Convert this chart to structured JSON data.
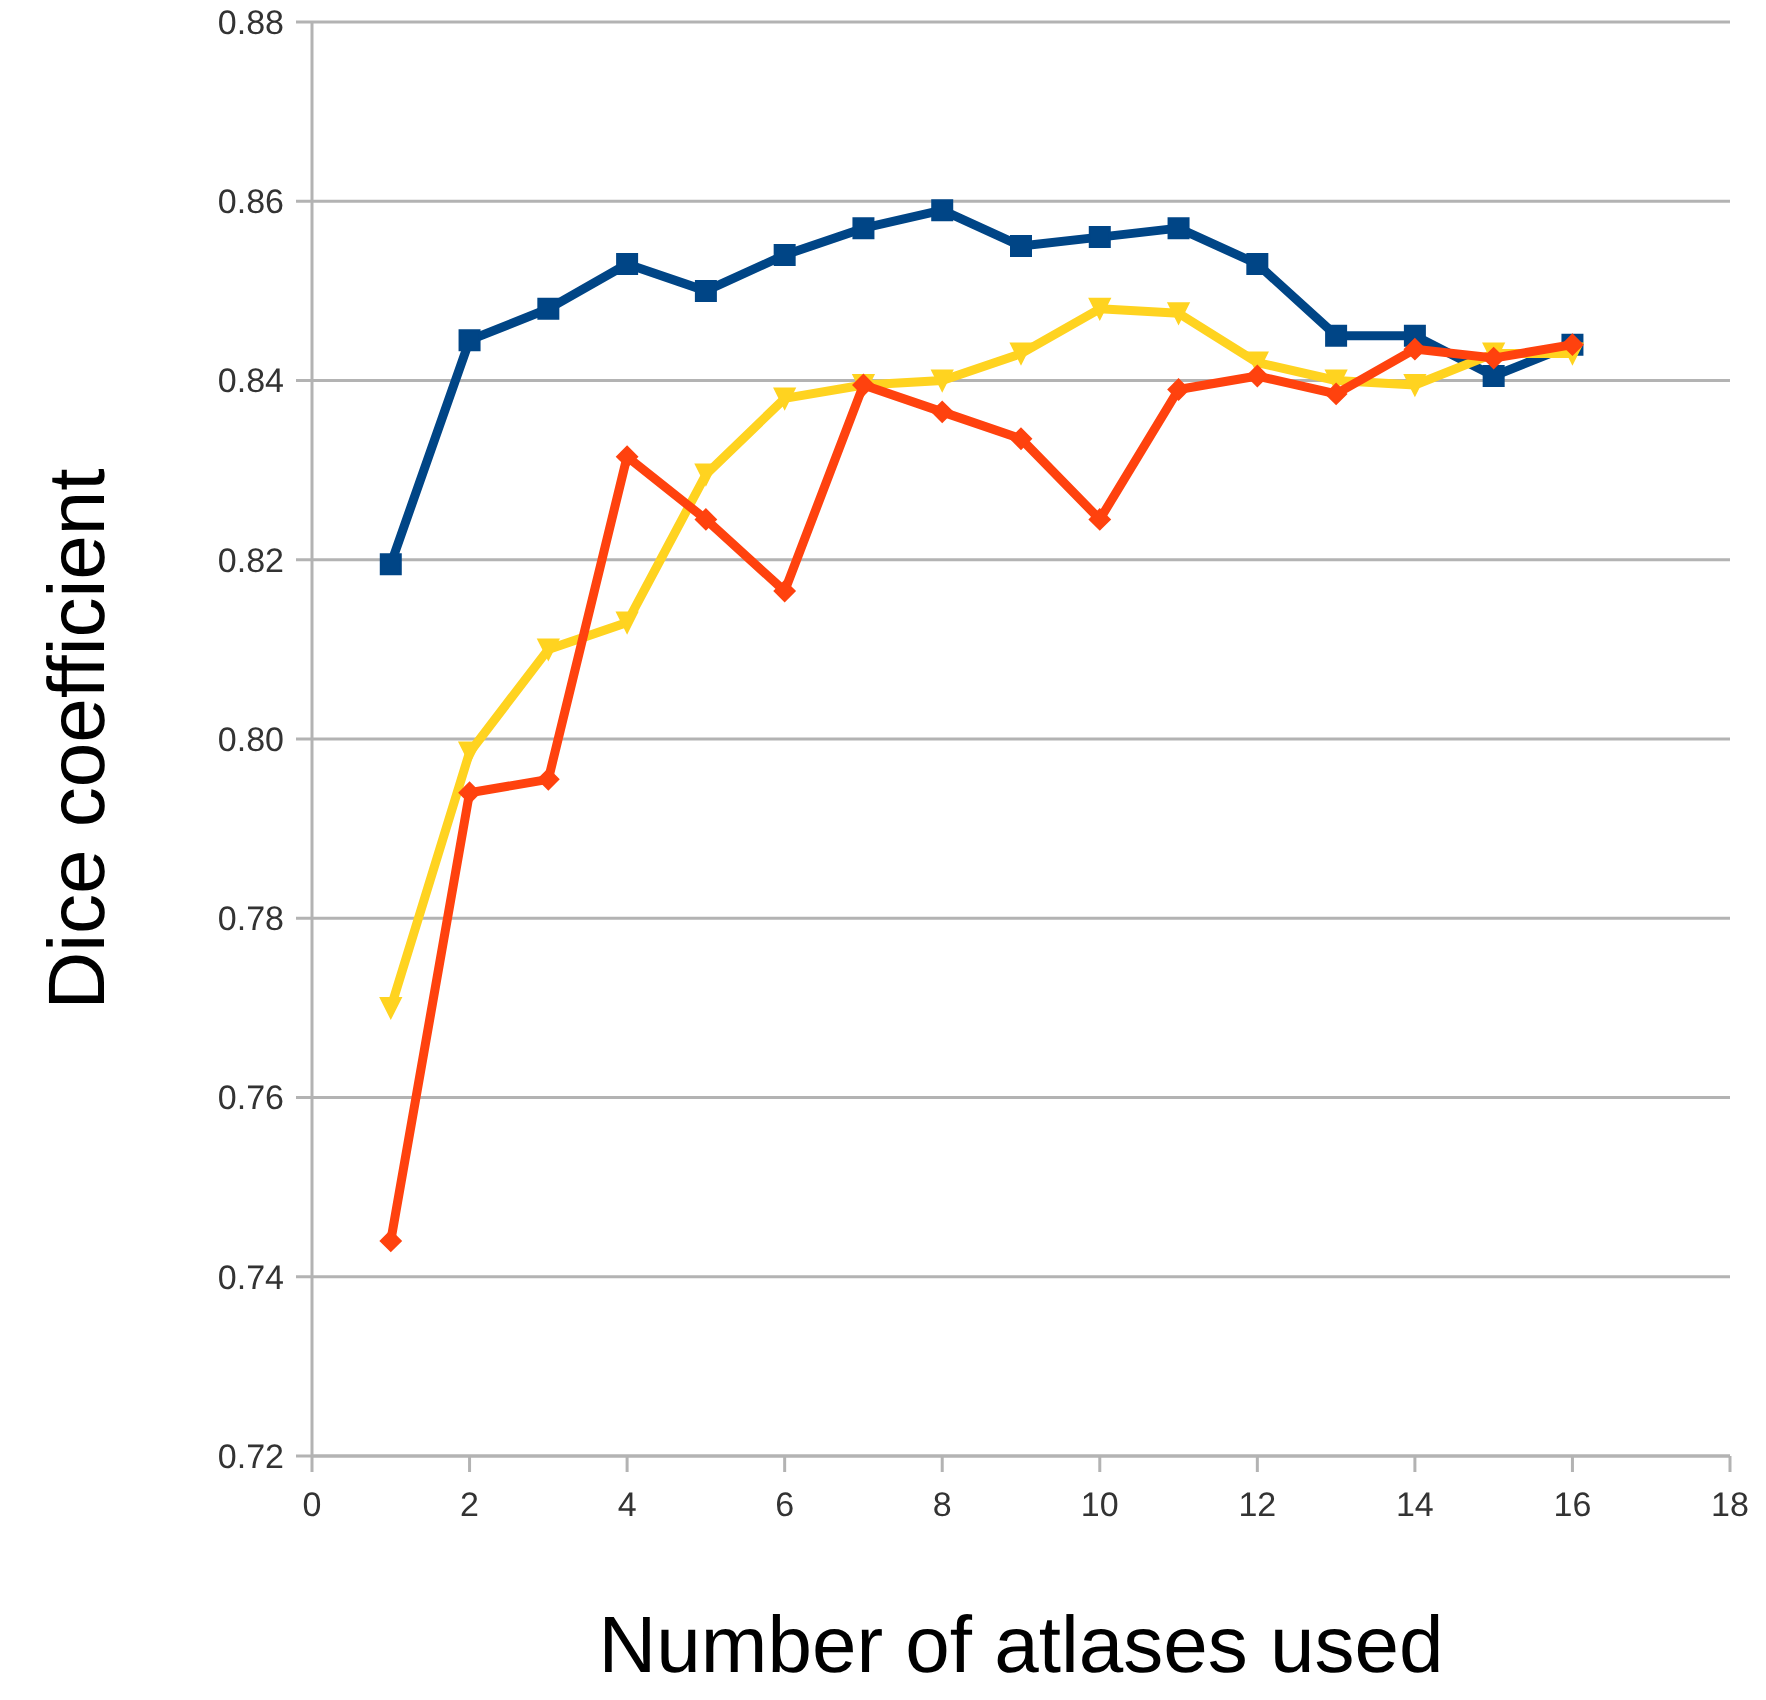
{
  "chart_data": {
    "type": "line",
    "xlabel": "Number of atlases used",
    "ylabel": "Dice coefficient",
    "x": [
      1,
      2,
      3,
      4,
      5,
      6,
      7,
      8,
      9,
      10,
      11,
      12,
      13,
      14,
      15,
      16
    ],
    "series": [
      {
        "color": "#004586",
        "marker": "square",
        "values": [
          0.8195,
          0.8445,
          0.848,
          0.853,
          0.85,
          0.854,
          0.857,
          0.859,
          0.855,
          0.856,
          0.857,
          0.853,
          0.845,
          0.845,
          0.8405,
          0.844
        ]
      },
      {
        "color": "#ffd320",
        "marker": "triangle",
        "values": [
          0.77,
          0.7985,
          0.81,
          0.813,
          0.8295,
          0.838,
          0.8395,
          0.84,
          0.843,
          0.848,
          0.8475,
          0.842,
          0.84,
          0.8395,
          0.843,
          0.843
        ]
      },
      {
        "color": "#ff420e",
        "marker": "diamond",
        "values": [
          0.744,
          0.794,
          0.7955,
          0.8315,
          0.8245,
          0.8165,
          0.8395,
          0.8365,
          0.8335,
          0.8245,
          0.839,
          0.8405,
          0.8385,
          0.8435,
          0.8425,
          0.844
        ]
      }
    ],
    "xlim": [
      0,
      18
    ],
    "xticks": [
      0,
      2,
      4,
      6,
      8,
      10,
      12,
      14,
      16,
      18
    ],
    "ylim": [
      0.72,
      0.88
    ],
    "yticks": [
      {
        "value": 0.72,
        "label": "0.72"
      },
      {
        "value": 0.74,
        "label": "0.74"
      },
      {
        "value": 0.76,
        "label": "0.76"
      },
      {
        "value": 0.78,
        "label": "0.78"
      },
      {
        "value": 0.8,
        "label": "0.80"
      },
      {
        "value": 0.82,
        "label": "0.82"
      },
      {
        "value": 0.84,
        "label": "0.84"
      },
      {
        "value": 0.86,
        "label": "0.86"
      },
      {
        "value": 0.88,
        "label": "0.88"
      }
    ],
    "grid": "y",
    "line_style": "solid"
  }
}
